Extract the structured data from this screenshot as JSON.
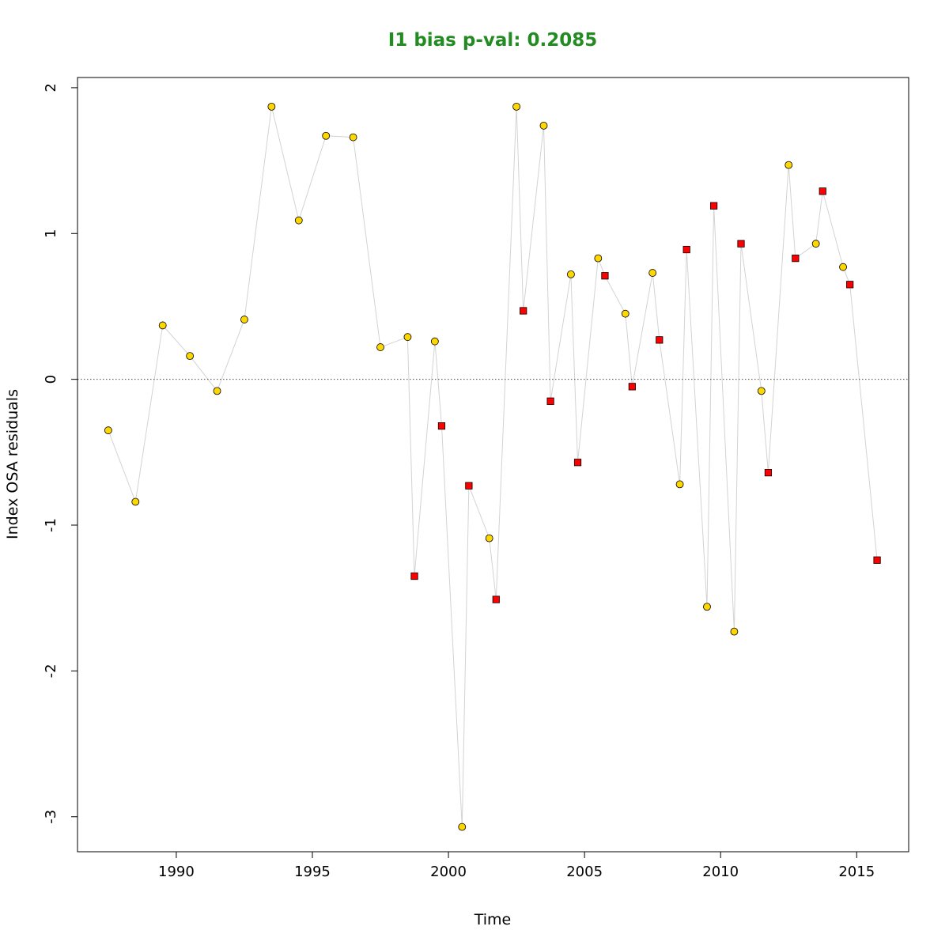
{
  "chart_data": {
    "type": "scatter",
    "title": "I1 bias p-val: 0.2085",
    "title_color": "#228B22",
    "xlabel": "Time",
    "ylabel": "Index OSA residuals",
    "xlim": [
      1986.37,
      2016.91
    ],
    "ylim": [
      -3.24,
      2.07
    ],
    "xticks": [
      1990,
      1995,
      2000,
      2005,
      2010,
      2015
    ],
    "yticks": [
      -3,
      -2,
      -1,
      0,
      1,
      2
    ],
    "reference_line": 0,
    "grid": false,
    "connector_color": "#d3d3d3",
    "series": [
      {
        "marker": "circle",
        "color": "#FFD700",
        "points": [
          [
            1987.5,
            -0.35
          ],
          [
            1988.5,
            -0.84
          ],
          [
            1989.5,
            0.37
          ],
          [
            1990.5,
            0.16
          ],
          [
            1991.5,
            -0.08
          ],
          [
            1992.5,
            0.41
          ],
          [
            1993.5,
            1.87
          ],
          [
            1994.5,
            1.09
          ],
          [
            1995.5,
            1.67
          ],
          [
            1996.5,
            1.66
          ],
          [
            1997.5,
            0.22
          ],
          [
            1998.5,
            0.29
          ],
          [
            1999.5,
            0.26
          ],
          [
            2000.5,
            -3.07
          ],
          [
            2001.5,
            -1.09
          ],
          [
            2002.5,
            1.87
          ],
          [
            2003.5,
            1.74
          ],
          [
            2004.5,
            0.72
          ],
          [
            2005.5,
            0.83
          ],
          [
            2006.5,
            0.45
          ],
          [
            2007.5,
            0.73
          ],
          [
            2008.5,
            -0.72
          ],
          [
            2009.5,
            -1.56
          ],
          [
            2010.5,
            -1.73
          ],
          [
            2011.5,
            -0.08
          ],
          [
            2012.5,
            1.47
          ],
          [
            2013.5,
            0.93
          ],
          [
            2014.5,
            0.77
          ]
        ]
      },
      {
        "marker": "square",
        "color": "#FF0000",
        "points": [
          [
            1998.75,
            -1.35
          ],
          [
            1999.75,
            -0.32
          ],
          [
            2000.75,
            -0.73
          ],
          [
            2001.75,
            -1.51
          ],
          [
            2002.75,
            0.47
          ],
          [
            2003.75,
            -0.15
          ],
          [
            2004.75,
            -0.57
          ],
          [
            2005.75,
            0.71
          ],
          [
            2006.75,
            -0.05
          ],
          [
            2007.75,
            0.27
          ],
          [
            2008.75,
            0.89
          ],
          [
            2009.75,
            1.19
          ],
          [
            2010.75,
            0.93
          ],
          [
            2011.75,
            -0.64
          ],
          [
            2012.75,
            0.83
          ],
          [
            2013.75,
            1.29
          ],
          [
            2014.75,
            0.65
          ],
          [
            2015.75,
            -1.24
          ]
        ]
      }
    ]
  }
}
